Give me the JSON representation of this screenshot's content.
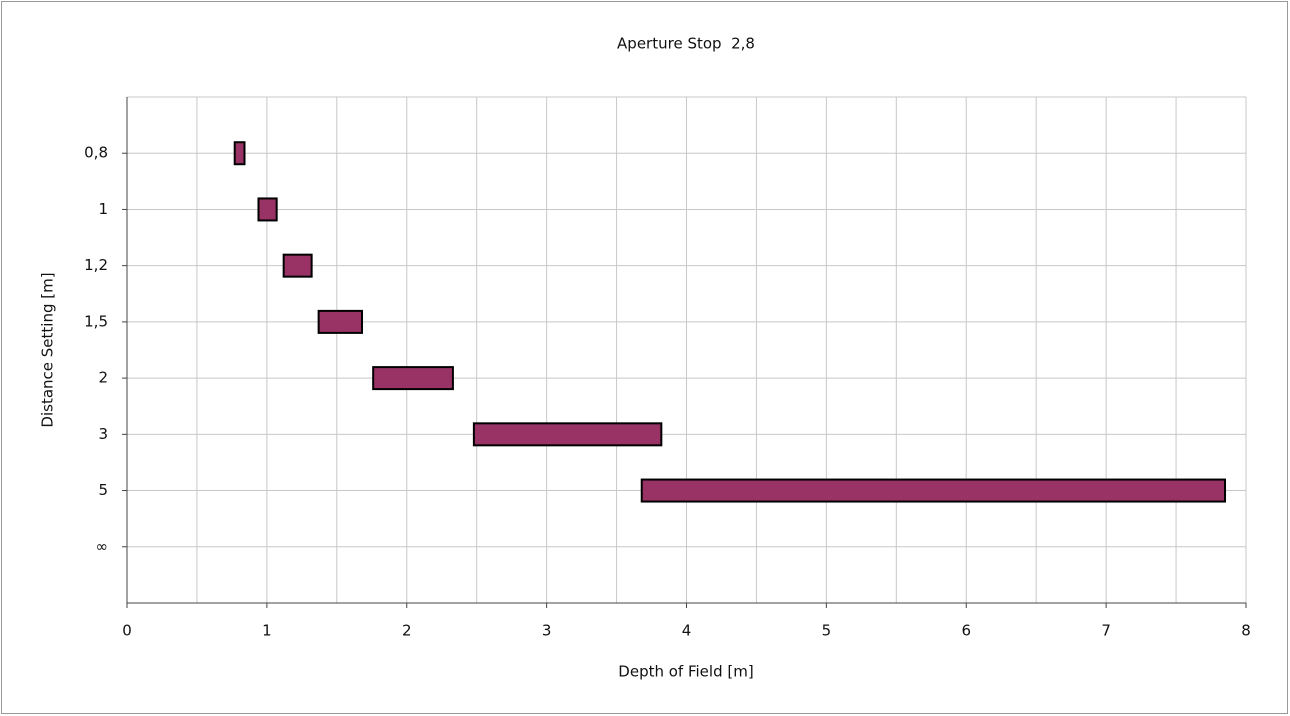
{
  "chart_data": {
    "type": "range-bar",
    "title": "Aperture Stop  2,8",
    "x_label": "Depth of Field [m]",
    "y_label": "Distance Setting [m]",
    "categories": [
      "0,8",
      "1",
      "1,2",
      "1,5",
      "2",
      "3",
      "5",
      "∞"
    ],
    "series": [
      {
        "color": "#993366",
        "starts": [
          0.77,
          0.94,
          1.12,
          1.37,
          1.76,
          2.48,
          3.68,
          null
        ],
        "ends": [
          0.84,
          1.07,
          1.32,
          1.68,
          2.33,
          3.82,
          7.85,
          null
        ]
      }
    ],
    "xlim": [
      0,
      8
    ],
    "xticks": [
      0,
      1,
      2,
      3,
      4,
      5,
      6,
      7,
      8
    ],
    "minor_xticks": [
      0.5,
      1.5,
      2.5,
      3.5,
      4.5,
      5.5,
      6.5,
      7.5
    ],
    "grid": true
  }
}
